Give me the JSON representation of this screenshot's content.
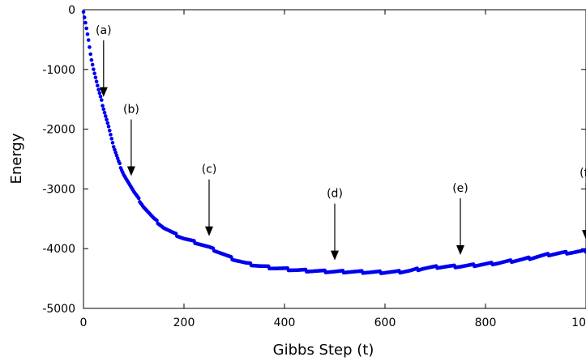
{
  "chart_data": {
    "type": "scatter",
    "title": "",
    "xlabel": "Gibbs Step (t)",
    "ylabel": "Energy",
    "xlim": [
      0,
      1000
    ],
    "ylim": [
      -5000,
      0
    ],
    "x_ticks": [
      0,
      200,
      400,
      600,
      800,
      1000
    ],
    "y_ticks": [
      0,
      -1000,
      -2000,
      -3000,
      -4000,
      -5000
    ],
    "x_tick_labels": [
      "0",
      "200",
      "400",
      "600",
      "800",
      "1000"
    ],
    "y_tick_labels": [
      "0",
      "-1000",
      "-2000",
      "-3000",
      "-4000",
      "-5000"
    ],
    "grid": false,
    "marker_color": "#0000ee",
    "series": [
      {
        "x": [
          0,
          5,
          10,
          15,
          20,
          30,
          40,
          50,
          60,
          70,
          80,
          90,
          100,
          120,
          140,
          160,
          180,
          200,
          225,
          250,
          275,
          300,
          325,
          350,
          375,
          400,
          425,
          450,
          475,
          500,
          525,
          550,
          575,
          600,
          625,
          650,
          675,
          700,
          725,
          750,
          775,
          800,
          825,
          850,
          875,
          900,
          925,
          950,
          975,
          1000
        ],
        "y": [
          -20,
          -250,
          -500,
          -800,
          -1000,
          -1350,
          -1650,
          -1950,
          -2300,
          -2550,
          -2750,
          -2900,
          -3050,
          -3300,
          -3500,
          -3650,
          -3750,
          -3830,
          -3900,
          -3980,
          -4080,
          -4180,
          -4250,
          -4290,
          -4320,
          -4340,
          -4360,
          -4370,
          -4380,
          -4385,
          -4385,
          -4390,
          -4395,
          -4395,
          -4390,
          -4370,
          -4330,
          -4310,
          -4300,
          -4295,
          -4280,
          -4260,
          -4240,
          -4210,
          -4180,
          -4140,
          -4100,
          -4075,
          -4060,
          -4040
        ]
      }
    ],
    "annotations": [
      {
        "label": "(a)",
        "x": 40
      },
      {
        "label": "(b)",
        "x": 95
      },
      {
        "label": "(c)",
        "x": 250
      },
      {
        "label": "(d)",
        "x": 500
      },
      {
        "label": "(e)",
        "x": 750
      },
      {
        "label": "(f)",
        "x": 1000
      }
    ]
  }
}
